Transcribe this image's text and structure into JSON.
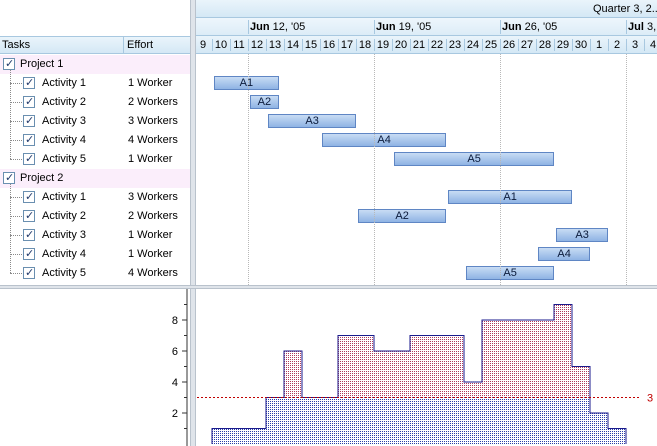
{
  "tree": {
    "columns": {
      "tasks": "Tasks",
      "effort": "Effort"
    },
    "projects": [
      {
        "name": "Project 1",
        "activities": [
          {
            "label": "Activity 1",
            "effort": "1 Worker",
            "bar": "A1",
            "start": 1,
            "end": 4.6
          },
          {
            "label": "Activity 2",
            "effort": "2 Workers",
            "bar": "A2",
            "start": 3,
            "end": 4.6
          },
          {
            "label": "Activity 3",
            "effort": "3 Workers",
            "bar": "A3",
            "start": 4,
            "end": 8.9
          },
          {
            "label": "Activity 4",
            "effort": "4 Workers",
            "bar": "A4",
            "start": 7,
            "end": 13.9
          },
          {
            "label": "Activity 5",
            "effort": "1 Worker",
            "bar": "A5",
            "start": 11,
            "end": 19.9
          }
        ]
      },
      {
        "name": "Project 2",
        "activities": [
          {
            "label": "Activity 1",
            "effort": "3 Workers",
            "bar": "A1",
            "start": 14,
            "end": 20.9
          },
          {
            "label": "Activity 2",
            "effort": "2 Workers",
            "bar": "A2",
            "start": 9,
            "end": 13.9
          },
          {
            "label": "Activity 3",
            "effort": "1 Worker",
            "bar": "A3",
            "start": 20,
            "end": 22.9
          },
          {
            "label": "Activity 4",
            "effort": "1 Worker",
            "bar": "A4",
            "start": 19,
            "end": 21.9
          },
          {
            "label": "Activity 5",
            "effort": "4 Workers",
            "bar": "A5",
            "start": 15,
            "end": 19.9
          }
        ]
      }
    ]
  },
  "timeline": {
    "quarter_label": "Quarter 3, 2...",
    "weeks": [
      {
        "bold": "Jun",
        "rest": " 12, '05",
        "day_index": 3
      },
      {
        "bold": "Jun",
        "rest": " 19, '05",
        "day_index": 10
      },
      {
        "bold": "Jun",
        "rest": " 26, '05",
        "day_index": 17
      },
      {
        "bold": "Jul",
        "rest": " 3, '",
        "day_index": 24
      }
    ],
    "days": [
      "9",
      "10",
      "11",
      "12",
      "13",
      "14",
      "15",
      "16",
      "17",
      "18",
      "19",
      "20",
      "21",
      "22",
      "23",
      "24",
      "25",
      "26",
      "27",
      "28",
      "29",
      "30",
      "1",
      "2",
      "3",
      "4"
    ]
  },
  "histogram": {
    "y_ticks": [
      "2",
      "4",
      "6",
      "8"
    ],
    "limit_label": "3",
    "limit_value": 3,
    "values": [
      1,
      1,
      1,
      3,
      6,
      3,
      3,
      7,
      7,
      6,
      6,
      7,
      7,
      7,
      4,
      8,
      8,
      8,
      8,
      9,
      5,
      2,
      1
    ]
  }
}
